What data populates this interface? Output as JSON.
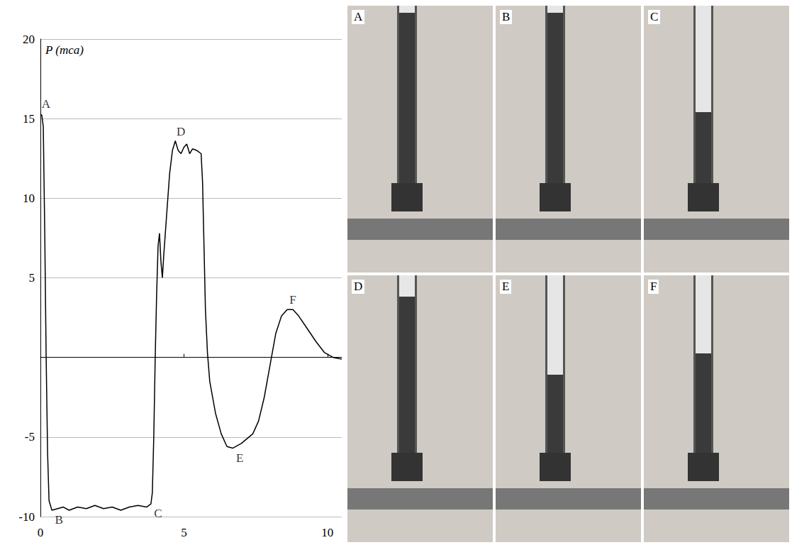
{
  "chart_data": {
    "type": "line",
    "ylabel": "P (mca)",
    "xlim": [
      0,
      10.5
    ],
    "xticks": [
      0,
      5,
      10
    ],
    "ylim": [
      -10,
      20
    ],
    "yticks": [
      -10,
      -5,
      5,
      10,
      15,
      20
    ],
    "grid": true,
    "color": "#000000",
    "x": [
      0,
      0.05,
      0.1,
      0.15,
      0.2,
      0.25,
      0.3,
      0.4,
      0.6,
      0.8,
      1.0,
      1.3,
      1.6,
      1.9,
      2.2,
      2.5,
      2.8,
      3.1,
      3.4,
      3.7,
      3.85,
      3.9,
      3.95,
      4.0,
      4.05,
      4.1,
      4.15,
      4.2,
      4.25,
      4.3,
      4.4,
      4.5,
      4.6,
      4.7,
      4.8,
      4.9,
      5.0,
      5.1,
      5.2,
      5.3,
      5.45,
      5.6,
      5.65,
      5.7,
      5.75,
      5.82,
      5.9,
      6.1,
      6.3,
      6.5,
      6.7,
      7.0,
      7.4,
      7.6,
      7.8,
      8.0,
      8.2,
      8.4,
      8.6,
      8.8,
      9.0,
      9.3,
      9.6,
      9.9,
      10.2,
      10.5
    ],
    "values": [
      15.3,
      15.2,
      14.5,
      8,
      0,
      -6,
      -9,
      -9.6,
      -9.5,
      -9.4,
      -9.6,
      -9.4,
      -9.5,
      -9.3,
      -9.5,
      -9.4,
      -9.6,
      -9.4,
      -9.3,
      -9.4,
      -9.2,
      -8.5,
      -5,
      0,
      4,
      7,
      7.8,
      6,
      5,
      6.5,
      9,
      11.5,
      13,
      13.6,
      13,
      12.8,
      13.2,
      13.4,
      12.8,
      13.1,
      13,
      12.8,
      11,
      7,
      3,
      0.3,
      -1.5,
      -3.5,
      -4.8,
      -5.6,
      -5.7,
      -5.4,
      -4.8,
      -4,
      -2.5,
      -0.5,
      1.5,
      2.6,
      3,
      3,
      2.6,
      1.8,
      1,
      0.3,
      0,
      -0.1
    ],
    "annotations": [
      {
        "text": "A",
        "x": 0,
        "y": 15.3
      },
      {
        "text": "B",
        "x": 0.4,
        "y": -9.6
      },
      {
        "text": "C",
        "x": 3.85,
        "y": -9.2
      },
      {
        "text": "D",
        "x": 4.7,
        "y": 13.6
      },
      {
        "text": "E",
        "x": 6.7,
        "y": -5.7
      },
      {
        "text": "F",
        "x": 8.6,
        "y": 3
      }
    ],
    "panels": [
      "A",
      "B",
      "C",
      "D",
      "E",
      "F"
    ]
  }
}
